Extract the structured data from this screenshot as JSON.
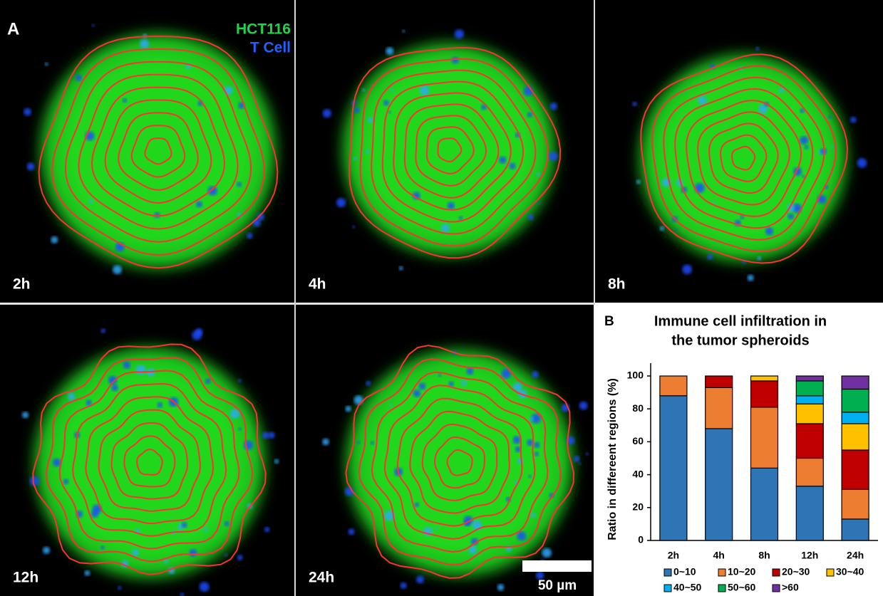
{
  "panel_a": {
    "label": "A",
    "legend": [
      "HCT116",
      "T Cell"
    ],
    "panels": [
      "2h",
      "4h",
      "8h",
      "12h",
      "24h"
    ],
    "scale_bar": "50 µm"
  },
  "chart_data": {
    "type": "stacked_bar",
    "panel_label": "B",
    "title": [
      "Immune cell infiltration in",
      "the tumor spheroids"
    ],
    "y_label": "Ratio in differeent regions (%)",
    "categories": [
      "2h",
      "4h",
      "8h",
      "12h",
      "24h"
    ],
    "series": [
      {
        "name": "0~10",
        "color": "#2e75b6",
        "values": [
          88,
          68,
          44,
          33,
          13
        ]
      },
      {
        "name": "10~20",
        "color": "#ed7d31",
        "values": [
          12,
          25,
          37,
          17,
          18
        ]
      },
      {
        "name": "20~30",
        "color": "#c00000",
        "values": [
          0,
          7,
          16,
          21,
          24
        ]
      },
      {
        "name": "30~40",
        "color": "#ffc000",
        "values": [
          0,
          0,
          3,
          12,
          16
        ]
      },
      {
        "name": "40~50",
        "color": "#00b0f0",
        "values": [
          0,
          0,
          0,
          5,
          7
        ]
      },
      {
        "name": "50~60",
        "color": "#00b050",
        "values": [
          0,
          0,
          0,
          9,
          14
        ]
      },
      {
        "name": ">60",
        "color": "#7030a0",
        "values": [
          0,
          0,
          0,
          3,
          8
        ]
      }
    ],
    "ylim": [
      0,
      100
    ],
    "yticks": [
      0,
      20,
      40,
      60,
      80,
      100
    ]
  }
}
